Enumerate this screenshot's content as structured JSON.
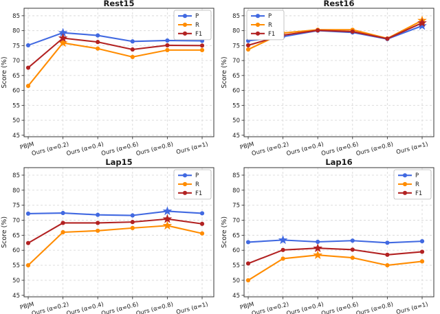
{
  "figure": {
    "background": "#ffffff",
    "text_color": "#1a1a1a",
    "grid_color": "#d9d9d9",
    "spine_color": "#333333",
    "legend_labels": [
      "P",
      "R",
      "F1"
    ],
    "series_colors": {
      "P": "#4169E1",
      "R": "#FF8C00",
      "F1": "#B22222"
    }
  },
  "chart_data": [
    {
      "type": "line",
      "title": "Rest15",
      "xlabel": "",
      "ylabel": "Score (%)",
      "ylim": [
        44.5,
        87.5
      ],
      "yticks": [
        45,
        50,
        55,
        60,
        65,
        70,
        75,
        80,
        85
      ],
      "grid": true,
      "legend_position": "upper right",
      "categories": [
        "PBJM",
        "Ours (α=0.2)",
        "Ours (α=0.4)",
        "Ours (α=0.6)",
        "Ours (α=0.8)",
        "Ours (α=1)"
      ],
      "series": [
        {
          "name": "P",
          "color": "#4169E1",
          "values": [
            75.1,
            79.3,
            78.4,
            76.4,
            76.7,
            76.6
          ],
          "star_indices": [
            1
          ]
        },
        {
          "name": "R",
          "color": "#FF8C00",
          "values": [
            61.5,
            75.9,
            74.0,
            71.2,
            73.5,
            73.5
          ],
          "star_indices": [
            1
          ]
        },
        {
          "name": "F1",
          "color": "#B22222",
          "values": [
            67.6,
            77.5,
            76.2,
            73.7,
            75.1,
            75.0
          ],
          "star_indices": [
            1
          ]
        }
      ]
    },
    {
      "type": "line",
      "title": "Rest16",
      "xlabel": "",
      "ylabel": "Score (%)",
      "ylim": [
        44.5,
        87.5
      ],
      "yticks": [
        45,
        50,
        55,
        60,
        65,
        70,
        75,
        80,
        85
      ],
      "grid": true,
      "legend_position": "upper left",
      "categories": [
        "PBJM",
        "Ours (α=0.2)",
        "Ours (α=0.4)",
        "Ours (α=0.6)",
        "Ours (α=0.8)",
        "Ours (α=1)"
      ],
      "series": [
        {
          "name": "P",
          "color": "#4169E1",
          "values": [
            76.6,
            78.0,
            80.0,
            79.4,
            77.2,
            81.6
          ],
          "star_indices": [
            5
          ]
        },
        {
          "name": "R",
          "color": "#FF8C00",
          "values": [
            73.7,
            79.2,
            80.3,
            80.3,
            77.4,
            83.4
          ],
          "star_indices": [
            5
          ]
        },
        {
          "name": "F1",
          "color": "#B22222",
          "values": [
            75.1,
            78.5,
            80.1,
            79.7,
            77.3,
            82.6
          ],
          "star_indices": [
            5
          ]
        }
      ]
    },
    {
      "type": "line",
      "title": "Lap15",
      "xlabel": "",
      "ylabel": "Score (%)",
      "ylim": [
        44.5,
        87.5
      ],
      "yticks": [
        45,
        50,
        55,
        60,
        65,
        70,
        75,
        80,
        85
      ],
      "grid": true,
      "legend_position": "upper right",
      "categories": [
        "PBJM",
        "Ours (α=0.2)",
        "Ours (α=0.4)",
        "Ours (α=0.6)",
        "Ours (α=0.8)",
        "Ours (α=1)"
      ],
      "series": [
        {
          "name": "P",
          "color": "#4169E1",
          "values": [
            72.2,
            72.4,
            71.8,
            71.6,
            73.0,
            72.3
          ],
          "star_indices": [
            4
          ]
        },
        {
          "name": "R",
          "color": "#FF8C00",
          "values": [
            55.0,
            66.0,
            66.5,
            67.4,
            68.2,
            65.6
          ],
          "star_indices": [
            4
          ]
        },
        {
          "name": "F1",
          "color": "#B22222",
          "values": [
            62.4,
            69.1,
            69.1,
            69.4,
            70.4,
            68.8
          ],
          "star_indices": [
            4
          ]
        }
      ]
    },
    {
      "type": "line",
      "title": "Lap16",
      "xlabel": "",
      "ylabel": "Score (%)",
      "ylim": [
        44.5,
        87.5
      ],
      "yticks": [
        45,
        50,
        55,
        60,
        65,
        70,
        75,
        80,
        85
      ],
      "grid": true,
      "legend_position": "upper right",
      "categories": [
        "PBJM",
        "Ours (α=0.2)",
        "Ours (α=0.4)",
        "Ours (α=0.6)",
        "Ours (α=0.8)",
        "Ours (α=1)"
      ],
      "series": [
        {
          "name": "P",
          "color": "#4169E1",
          "values": [
            62.7,
            63.4,
            62.8,
            63.2,
            62.5,
            63.0
          ],
          "star_indices": [
            1
          ]
        },
        {
          "name": "R",
          "color": "#FF8C00",
          "values": [
            50.0,
            57.2,
            58.4,
            57.5,
            55.0,
            56.3
          ],
          "star_indices": [
            2
          ]
        },
        {
          "name": "F1",
          "color": "#B22222",
          "values": [
            55.6,
            60.1,
            60.7,
            60.2,
            58.5,
            59.5
          ],
          "star_indices": [
            2
          ]
        }
      ]
    }
  ]
}
